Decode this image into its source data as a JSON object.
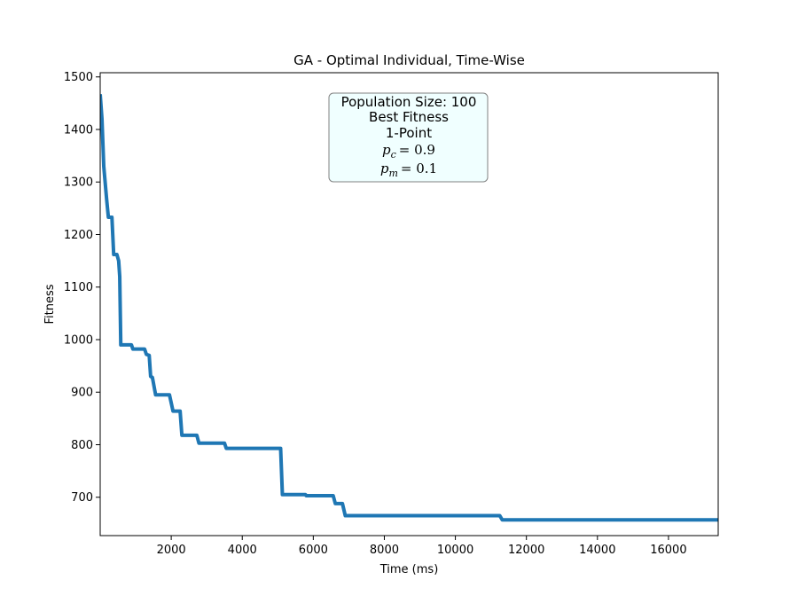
{
  "colors": {
    "line": "#1f77b4",
    "annotation_fill": "#f0ffff",
    "annotation_edge": "#808080"
  },
  "chart_data": {
    "type": "line",
    "title": "GA - Optimal Individual, Time-Wise",
    "xlabel": "Time (ms)",
    "ylabel": "Fitness",
    "xlim": [
      0,
      17400
    ],
    "ylim": [
      627,
      1508
    ],
    "xticks": [
      2000,
      4000,
      6000,
      8000,
      10000,
      12000,
      14000,
      16000
    ],
    "yticks": [
      700,
      800,
      900,
      1000,
      1100,
      1200,
      1300,
      1400,
      1500
    ],
    "grid": false,
    "legend": "none",
    "annotation": {
      "lines": [
        "Population Size: 100",
        "Best Fitness",
        "1-Point"
      ],
      "pc": {
        "symbol": "p",
        "subscript": "c",
        "value": "= 0.9"
      },
      "pm": {
        "symbol": "p",
        "subscript": "m",
        "value": "= 0.1"
      }
    },
    "series": [
      {
        "points": [
          [
            0,
            1467
          ],
          [
            50,
            1420
          ],
          [
            100,
            1330
          ],
          [
            180,
            1268
          ],
          [
            230,
            1233
          ],
          [
            330,
            1233
          ],
          [
            380,
            1162
          ],
          [
            470,
            1162
          ],
          [
            520,
            1150
          ],
          [
            550,
            1120
          ],
          [
            580,
            990
          ],
          [
            880,
            990
          ],
          [
            920,
            982
          ],
          [
            1250,
            982
          ],
          [
            1300,
            972
          ],
          [
            1380,
            970
          ],
          [
            1420,
            930
          ],
          [
            1470,
            928
          ],
          [
            1560,
            895
          ],
          [
            1950,
            895
          ],
          [
            2050,
            864
          ],
          [
            2250,
            864
          ],
          [
            2300,
            818
          ],
          [
            2720,
            818
          ],
          [
            2780,
            803
          ],
          [
            3500,
            803
          ],
          [
            3550,
            793
          ],
          [
            5080,
            793
          ],
          [
            5130,
            705
          ],
          [
            5780,
            705
          ],
          [
            5800,
            703
          ],
          [
            6560,
            703
          ],
          [
            6620,
            688
          ],
          [
            6820,
            688
          ],
          [
            6900,
            665
          ],
          [
            11250,
            665
          ],
          [
            11320,
            657
          ],
          [
            17400,
            657
          ]
        ]
      }
    ]
  }
}
